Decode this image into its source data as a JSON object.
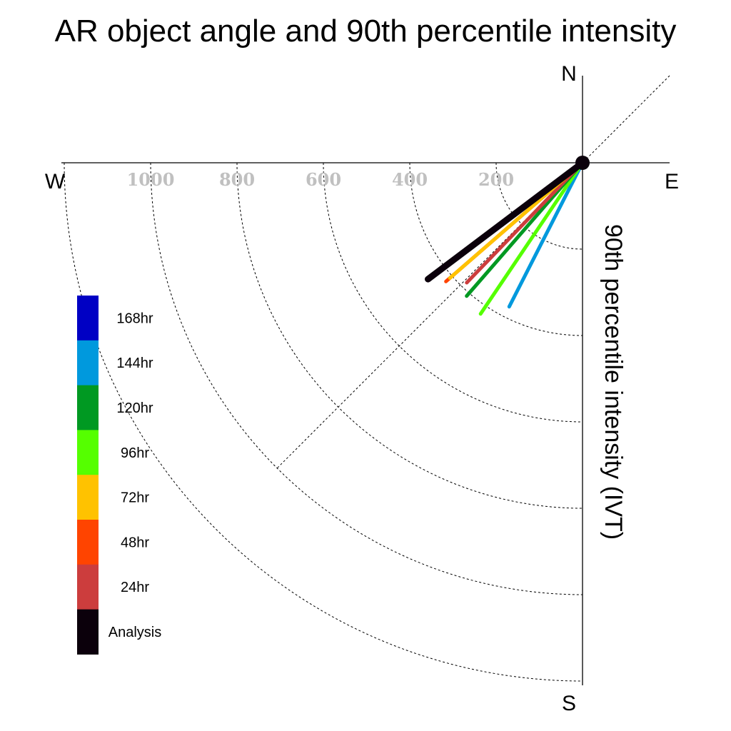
{
  "chart_data": {
    "type": "polar-vector",
    "title": "AR object angle and 90th percentile intensity",
    "ylabel": "90th percentile intensity (IVT)",
    "directions": {
      "north": "N",
      "south": "S",
      "east": "E",
      "west": "W"
    },
    "radial_ticks": [
      "200",
      "400",
      "600",
      "800",
      "1000"
    ],
    "radial_tick_values": [
      200,
      400,
      600,
      800,
      1000
    ],
    "rmax": 1200,
    "vectors": [
      {
        "name": "144hr",
        "angle_deg": 207,
        "intensity": 374,
        "color": "#0099dd"
      },
      {
        "name": "96hr",
        "angle_deg": 214,
        "intensity": 422,
        "color": "#55ff00"
      },
      {
        "name": "120hr",
        "angle_deg": 221,
        "intensity": 409,
        "color": "#009922"
      },
      {
        "name": "24hr",
        "angle_deg": 224,
        "intensity": 386,
        "color": "#cc3d3d"
      },
      {
        "name": "48hr",
        "angle_deg": 229,
        "intensity": 419,
        "color": "#ff4400"
      },
      {
        "name": "72hr",
        "angle_deg": 229,
        "intensity": 407,
        "color": "#ffc200"
      },
      {
        "name": "Analysis",
        "angle_deg": 233,
        "intensity": 448,
        "color": "#0b000b"
      }
    ],
    "legend": [
      {
        "label": "168hr",
        "color": "#0000c4"
      },
      {
        "label": "144hr",
        "color": "#0099dd"
      },
      {
        "label": "120hr",
        "color": "#009922"
      },
      {
        "label": "96hr",
        "color": "#55ff00"
      },
      {
        "label": "72hr",
        "color": "#ffc200"
      },
      {
        "label": "48hr",
        "color": "#ff4400"
      },
      {
        "label": "24hr",
        "color": "#cc3d3d"
      },
      {
        "label": "Analysis",
        "color": "#0b000b"
      }
    ]
  }
}
